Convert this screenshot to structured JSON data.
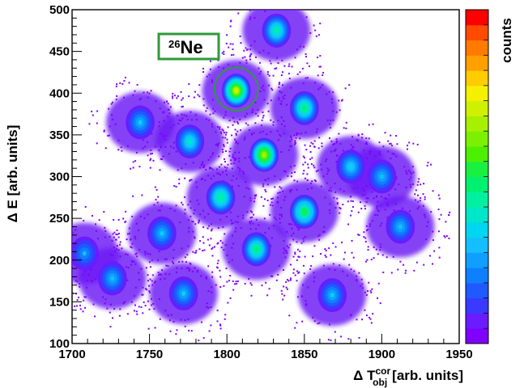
{
  "chart_data": {
    "type": "heatmap",
    "xlabel": {
      "symbol": "Δ T",
      "sup": "cor",
      "sub": "obj",
      "units": "[arb. units]"
    },
    "ylabel": "Δ E [arb. units]",
    "xlim": [
      1700,
      1950
    ],
    "ylim": [
      100,
      500
    ],
    "x_ticks": [
      "1700",
      "1750",
      "1800",
      "1850",
      "1900",
      "1950"
    ],
    "y_ticks": [
      "100",
      "150",
      "200",
      "250",
      "300",
      "350",
      "400",
      "450",
      "500"
    ],
    "colorbar_label": "counts",
    "colorbar_colors": [
      "#7f00ff",
      "#6a1bff",
      "#3a3aff",
      "#1e5aff",
      "#0f7fff",
      "#0f9fff",
      "#15bfff",
      "#00d6f0",
      "#00e6c8",
      "#00f0a0",
      "#00f070",
      "#1af040",
      "#4cf000",
      "#7cf000",
      "#a6f000",
      "#cff000",
      "#f5f000",
      "#ffcc00",
      "#ff9f00",
      "#ff7a00",
      "#ff4a00",
      "#ff0000"
    ],
    "annotation": {
      "label_sup": "26",
      "label": "Ne",
      "circle_center": [
        1806,
        405
      ],
      "circle_radius_x": 14
    },
    "isotope_blobs": [
      {
        "x": 1832,
        "y": 475,
        "peak": 0.55
      },
      {
        "x": 1806,
        "y": 403,
        "peak": 1.0
      },
      {
        "x": 1850,
        "y": 382,
        "peak": 0.62
      },
      {
        "x": 1744,
        "y": 365,
        "peak": 0.4
      },
      {
        "x": 1776,
        "y": 342,
        "peak": 0.5
      },
      {
        "x": 1824,
        "y": 326,
        "peak": 0.95
      },
      {
        "x": 1880,
        "y": 312,
        "peak": 0.45
      },
      {
        "x": 1796,
        "y": 275,
        "peak": 0.6
      },
      {
        "x": 1850,
        "y": 258,
        "peak": 0.72
      },
      {
        "x": 1758,
        "y": 232,
        "peak": 0.4
      },
      {
        "x": 1819,
        "y": 213,
        "peak": 0.62
      },
      {
        "x": 1726,
        "y": 178,
        "peak": 0.35
      },
      {
        "x": 1772,
        "y": 160,
        "peak": 0.4
      },
      {
        "x": 1868,
        "y": 158,
        "peak": 0.4
      },
      {
        "x": 1912,
        "y": 240,
        "peak": 0.38
      },
      {
        "x": 1900,
        "y": 300,
        "peak": 0.35
      },
      {
        "x": 1708,
        "y": 208,
        "peak": 0.33
      }
    ]
  }
}
